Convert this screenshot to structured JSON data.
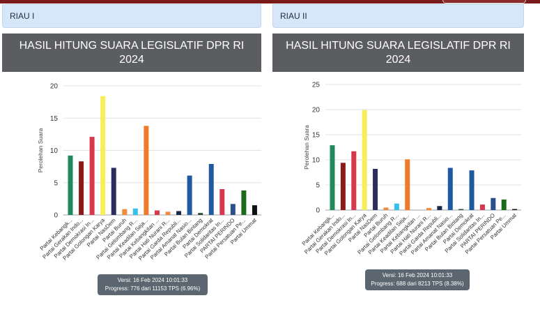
{
  "chart_data": [
    {
      "type": "bar",
      "region": "RIAU I",
      "title": "HASIL HITUNG SUARA LEGISLATIF DPR RI 2024",
      "ylabel": "Perolehan Suara",
      "xlabel": "",
      "ylim": [
        0,
        20
      ],
      "yticks": [
        0,
        5,
        10,
        15,
        20
      ],
      "grid": true,
      "categories": [
        "Partai Kebangk...",
        "Partai Gerakan Indo...",
        "Partai Demokrasi In...",
        "Partai Golongan Karya",
        "Partai NasDem",
        "Partai Buruh",
        "Partai Gelombang R...",
        "Partai Keadilan Seja...",
        "Partai Kebangkitan ...",
        "Partai Hati Nurani R...",
        "Partai Garda Republi...",
        "Partai Amanat Nasio...",
        "Partai Bulan Bintang",
        "Partai Demokrat",
        "Partai Solidaritas In...",
        "PARTAI PERINDO",
        "Partai Persatuan Pe...",
        "Partai Ummat"
      ],
      "values": [
        9.2,
        8.3,
        12.1,
        18.4,
        7.3,
        0.9,
        1.0,
        13.8,
        0.7,
        0.5,
        0.6,
        6.1,
        0.3,
        7.9,
        4.0,
        1.7,
        3.8,
        1.5
      ],
      "colors": [
        "#1f8a5b",
        "#8b1a1a",
        "#d9374c",
        "#f7ef5a",
        "#2c2c5e",
        "#f08a3c",
        "#39c0ea",
        "#ee7a2a",
        "#d9374c",
        "#f08a3c",
        "#1a2a4a",
        "#1f5aa0",
        "#2a4a2a",
        "#1f5aa0",
        "#d9374c",
        "#2a4f8a",
        "#1a6a1a",
        "#111111"
      ],
      "version": "Versi: 16 Feb 2024 10:01:33",
      "progress": "Progress: 776 dari 11153 TPS (6.96%)"
    },
    {
      "type": "bar",
      "region": "RIAU II",
      "title": "HASIL HITUNG SUARA LEGISLATIF DPR RI 2024",
      "ylabel": "Perolehan Suara",
      "xlabel": "",
      "ylim": [
        0,
        25
      ],
      "yticks": [
        0,
        5,
        10,
        15,
        20,
        25
      ],
      "grid": true,
      "categories": [
        "Partai Kebangk...",
        "Partai Gerakan Indo...",
        "Partai Demokrasi In...",
        "Partai Golongan Karya",
        "Partai NasDem",
        "Partai Buruh",
        "Partai Gelombang R...",
        "Partai Keadilan Seja...",
        "Partai Kebangkitan ...",
        "Partai Hati Nurani R...",
        "Partai Garda Republi...",
        "Partai Amanat Nasio...",
        "Partai Bulan Bintang",
        "Partai Demokrat",
        "Partai Solidaritas In...",
        "PARTAI PERINDO",
        "Partai Persatuan Pe...",
        "Partai Ummat"
      ],
      "values": [
        12.9,
        9.4,
        11.7,
        19.9,
        8.2,
        0.5,
        1.3,
        10.1,
        0.0,
        0.4,
        0.8,
        8.4,
        0.2,
        7.9,
        1.1,
        2.4,
        2.1,
        0.2
      ],
      "colors": [
        "#1f8a5b",
        "#8b1a1a",
        "#d9374c",
        "#f7ef5a",
        "#2c2c5e",
        "#f08a3c",
        "#39c0ea",
        "#ee7a2a",
        "#d9374c",
        "#f08a3c",
        "#1a2a4a",
        "#1f5aa0",
        "#2a4a2a",
        "#1f5aa0",
        "#d9374c",
        "#2a4f8a",
        "#1a6a1a",
        "#111111"
      ],
      "version": "Versi: 16 Feb 2024 10:01:33",
      "progress": "Progress: 688 dari 8213 TPS (8.38%)"
    }
  ]
}
